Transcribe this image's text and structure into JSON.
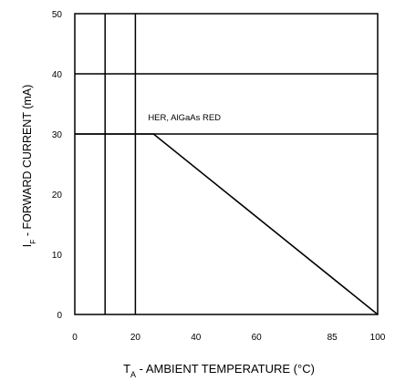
{
  "chart_data": {
    "type": "line",
    "xlabel": {
      "main": "T",
      "sub": "A",
      "rest": " - AMBIENT TEMPERATURE (°C)"
    },
    "ylabel": {
      "main": "I",
      "sub": "F",
      "rest": " - FORWARD CURRENT  (mA)"
    },
    "xlim": [
      0,
      100
    ],
    "ylim": [
      0,
      50
    ],
    "x_ticks": [
      {
        "value": 0,
        "label": "0"
      },
      {
        "value": 10,
        "label": ""
      },
      {
        "value": 20,
        "label": "20"
      },
      {
        "value": 40,
        "label": "40"
      },
      {
        "value": 60,
        "label": "60"
      },
      {
        "value": 85,
        "label": "85"
      },
      {
        "value": 100,
        "label": "100"
      }
    ],
    "y_ticks": [
      {
        "value": 0,
        "label": "0"
      },
      {
        "value": 10,
        "label": "10"
      },
      {
        "value": 20,
        "label": "20"
      },
      {
        "value": 30,
        "label": "30"
      },
      {
        "value": 40,
        "label": "40"
      },
      {
        "value": 50,
        "label": "50"
      }
    ],
    "vertical_gridlines": [
      10,
      20
    ],
    "horizontal_gridlines": [
      30,
      40
    ],
    "grid": true,
    "series": [
      {
        "name": "HER, AlGaAs RED",
        "points": [
          [
            0,
            30
          ],
          [
            26,
            30
          ],
          [
            100,
            0
          ]
        ],
        "color": "#000000"
      }
    ],
    "annotations": [
      {
        "text": "HER, AlGaAs RED",
        "x": 26,
        "y": 30
      }
    ]
  }
}
